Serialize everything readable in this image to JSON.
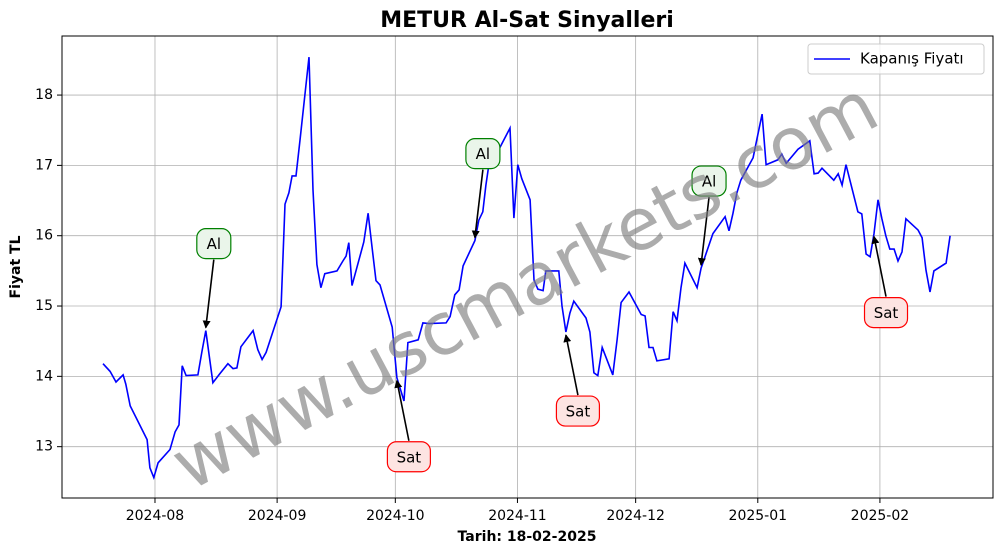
{
  "chart_data": {
    "type": "line",
    "title": "METUR Al-Sat Sinyalleri",
    "xlabel": "Tarih: 18-02-2025",
    "ylabel": "Fiyat TL",
    "watermark": "www.uscmarkets.com",
    "grid": true,
    "legend": "upper right",
    "xlim": [
      -23.6,
      212.7
    ],
    "ylim": [
      12.27,
      18.84
    ],
    "xticks": [
      {
        "value": 0,
        "label": "2024-08"
      },
      {
        "value": 31,
        "label": "2024-09"
      },
      {
        "value": 61,
        "label": "2024-10"
      },
      {
        "value": 92,
        "label": "2024-11"
      },
      {
        "value": 122,
        "label": "2024-12"
      },
      {
        "value": 153,
        "label": "2025-01"
      },
      {
        "value": 184,
        "label": "2025-02"
      }
    ],
    "yticks": [
      13,
      14,
      15,
      16,
      17,
      18
    ],
    "x": [
      -13.2,
      -11.4,
      -9.9,
      -8.1,
      -7.4,
      -6.3,
      -2.0,
      -1.3,
      -0.3,
      0.8,
      3.8,
      5.1,
      6.1,
      6.9,
      7.9,
      10.9,
      11.9,
      12.9,
      14.7,
      16.5,
      18.5,
      19.8,
      20.8,
      21.8,
      24.9,
      26.1,
      27.2,
      28.2,
      32.0,
      33.0,
      34.0,
      34.8,
      35.8,
      36.8,
      39.1,
      40.1,
      41.1,
      42.1,
      43.1,
      46.2,
      47.7,
      48.5,
      49.2,
      50.0,
      53.0,
      54.1,
      55.1,
      56.1,
      57.1,
      60.2,
      61.4,
      63.2,
      64.2,
      66.8,
      68.0,
      69.5,
      73.9,
      74.9,
      76.1,
      77.2,
      78.2,
      81.2,
      82.2,
      83.2,
      84.0,
      85.0,
      87.6,
      90.1,
      91.1,
      92.1,
      93.1,
      95.2,
      96.2,
      97.2,
      98.5,
      99.2,
      102.5,
      103.3,
      104.3,
      105.3,
      106.3,
      109.4,
      110.4,
      111.4,
      112.4,
      113.5,
      116.2,
      117.3,
      118.3,
      120.3,
      123.4,
      124.4,
      125.4,
      126.4,
      127.4,
      130.5,
      131.5,
      132.5,
      133.5,
      134.5,
      137.6,
      138.6,
      141.6,
      144.7,
      145.7,
      146.7,
      147.7,
      148.7,
      151.8,
      152.8,
      154.1,
      155.1,
      158.1,
      159.1,
      160.2,
      163.2,
      166.2,
      167.3,
      168.3,
      169.3,
      172.3,
      173.4,
      174.4,
      175.4,
      178.4,
      179.4,
      180.5,
      181.5,
      182.5,
      183.5,
      184.5,
      185.5,
      186.5,
      187.6,
      188.6,
      189.6,
      190.6,
      193.7,
      194.7,
      195.7,
      196.7,
      197.7,
      200.8,
      201.8
    ],
    "series": [
      {
        "name": "Kapanış Fiyatı",
        "color": "#0000ff",
        "values": [
          14.18,
          14.07,
          13.92,
          14.02,
          13.89,
          13.58,
          13.1,
          12.7,
          12.56,
          12.77,
          12.96,
          13.21,
          13.31,
          14.15,
          14.01,
          14.02,
          14.35,
          14.65,
          13.91,
          14.04,
          14.18,
          14.11,
          14.12,
          14.42,
          14.65,
          14.38,
          14.24,
          14.34,
          14.99,
          16.45,
          16.61,
          16.85,
          16.85,
          17.36,
          18.54,
          16.65,
          15.59,
          15.26,
          15.46,
          15.5,
          15.64,
          15.71,
          15.9,
          15.29,
          15.91,
          16.32,
          15.83,
          15.36,
          15.3,
          14.7,
          13.98,
          13.65,
          14.48,
          14.52,
          14.76,
          14.75,
          14.76,
          14.85,
          15.16,
          15.23,
          15.57,
          15.93,
          16.22,
          16.34,
          16.72,
          17.11,
          17.26,
          17.53,
          16.25,
          17.01,
          16.81,
          16.51,
          15.37,
          15.24,
          15.22,
          15.5,
          15.5,
          15.0,
          14.63,
          14.9,
          15.07,
          14.83,
          14.63,
          14.05,
          14.01,
          14.41,
          14.02,
          14.52,
          15.05,
          15.2,
          14.88,
          14.86,
          14.41,
          14.41,
          14.22,
          14.25,
          14.92,
          14.79,
          15.26,
          15.61,
          15.26,
          15.54,
          16.03,
          16.27,
          16.07,
          16.32,
          16.61,
          16.79,
          17.11,
          17.38,
          17.73,
          17.01,
          17.08,
          17.16,
          17.03,
          17.23,
          17.35,
          16.88,
          16.89,
          16.96,
          16.79,
          16.88,
          16.72,
          17.01,
          16.34,
          16.31,
          15.74,
          15.7,
          16.03,
          16.51,
          16.24,
          16.0,
          15.81,
          15.81,
          15.64,
          15.77,
          16.24,
          16.08,
          15.97,
          15.51,
          15.2,
          15.5,
          15.61,
          16.0
        ]
      }
    ],
    "annotations": [
      {
        "text": "Al",
        "x": 12.9,
        "y": 14.65,
        "color": "green"
      },
      {
        "text": "Al",
        "x": 81.2,
        "y": 15.93,
        "color": "green"
      },
      {
        "text": "Al",
        "x": 138.6,
        "y": 15.54,
        "color": "green"
      },
      {
        "text": "Sat",
        "x": 61.4,
        "y": 13.98,
        "color": "red"
      },
      {
        "text": "Sat",
        "x": 104.3,
        "y": 14.63,
        "color": "red"
      },
      {
        "text": "Sat",
        "x": 182.5,
        "y": 16.03,
        "color": "red"
      }
    ]
  }
}
